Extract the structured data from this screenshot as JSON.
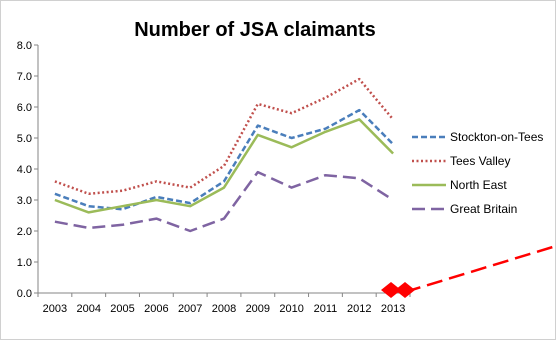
{
  "chart_data": {
    "type": "line",
    "title": "Number of JSA claimants",
    "xlabel": "",
    "ylabel": "",
    "categories": [
      "2003",
      "2004",
      "2005",
      "2006",
      "2007",
      "2008",
      "2009",
      "2010",
      "2011",
      "2012",
      "2013"
    ],
    "y_ticks": [
      "0.0",
      "1.0",
      "2.0",
      "3.0",
      "4.0",
      "5.0",
      "6.0",
      "7.0",
      "8.0"
    ],
    "ylim": [
      0,
      8
    ],
    "grid": false,
    "legend_position": "right",
    "series": [
      {
        "name": "Stockton-on-Tees",
        "color": "#4a7ebb",
        "dash": "dashed",
        "values": [
          3.2,
          2.8,
          2.7,
          3.1,
          2.9,
          3.6,
          5.4,
          5.0,
          5.3,
          5.9,
          4.8
        ]
      },
      {
        "name": "Tees Valley",
        "color": "#c0504d",
        "dash": "dotted",
        "values": [
          3.6,
          3.2,
          3.3,
          3.6,
          3.4,
          4.1,
          6.1,
          5.8,
          6.3,
          6.9,
          5.6
        ]
      },
      {
        "name": "North East",
        "color": "#9bbb59",
        "dash": "solid",
        "values": [
          3.0,
          2.6,
          2.8,
          3.0,
          2.8,
          3.4,
          5.1,
          4.7,
          5.2,
          5.6,
          4.5
        ]
      },
      {
        "name": "Great Britain",
        "color": "#7f64a2",
        "dash": "longdash",
        "values": [
          2.3,
          2.1,
          2.2,
          2.4,
          2.0,
          2.4,
          3.9,
          3.4,
          3.8,
          3.7,
          3.0
        ]
      }
    ],
    "overlay": {
      "marker_color": "#ff0000",
      "line_color": "#ff0000"
    }
  }
}
